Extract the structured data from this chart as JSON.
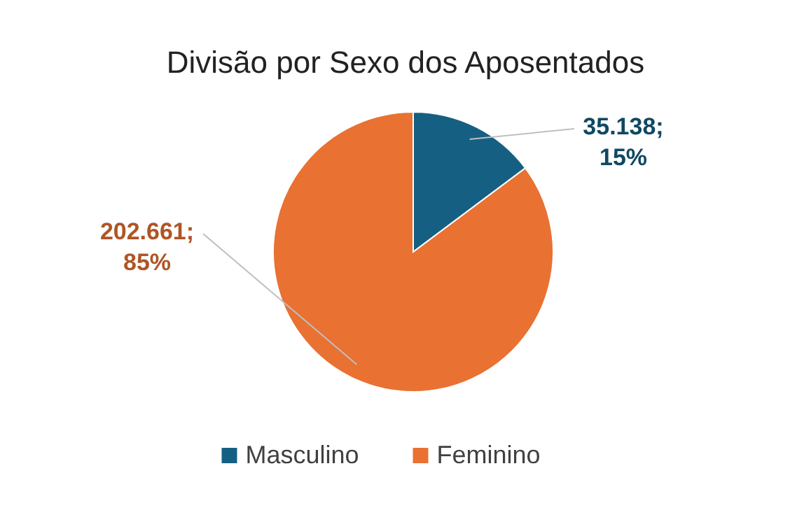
{
  "chart_data": {
    "type": "pie",
    "title": "Divisão por Sexo dos Aposentados",
    "categories": [
      "Masculino",
      "Feminino"
    ],
    "values": [
      35138,
      202661
    ],
    "colors": [
      "#156082",
      "#e97132"
    ],
    "value_labels": [
      "35.138; 15%",
      "202.661; 85%"
    ],
    "legend": "bottom"
  }
}
